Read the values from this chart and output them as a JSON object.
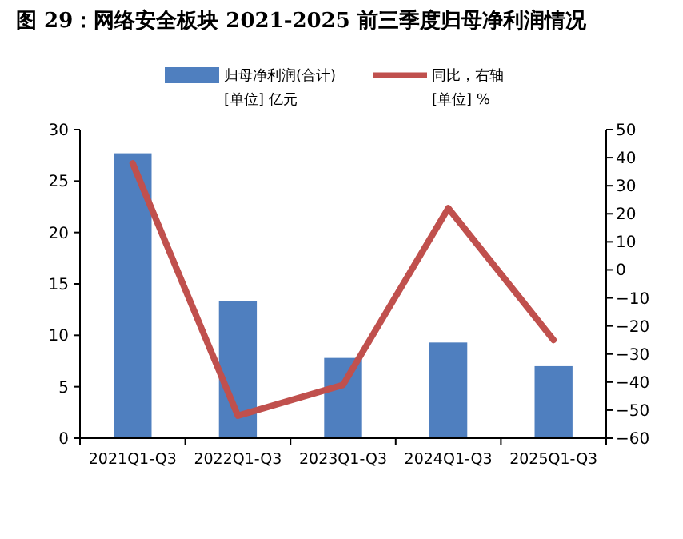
{
  "chart_data": {
    "type": "bar",
    "title": "图 29：网络安全板块 2021-2025 前三季度归母净利润情况",
    "ylabel": "[单位] 亿元",
    "y2label": "[单位] %",
    "categories": [
      "2021Q1-Q3",
      "2022Q1-Q3",
      "2023Q1-Q3",
      "2024Q1-Q3",
      "2025Q1-Q3"
    ],
    "series": [
      {
        "name": "归母净利润(合计)",
        "color": "#4f7fbf",
        "values": [
          27.7,
          13.3,
          7.8,
          9.3,
          7.0
        ]
      },
      {
        "name": "同比，右轴",
        "type": "line",
        "axis": "y2",
        "color": "#c0504d",
        "values": [
          38,
          -52,
          -41,
          22,
          -25
        ]
      }
    ],
    "ylim": [
      0,
      30
    ],
    "yticks": [
      0,
      5,
      10,
      15,
      20,
      25,
      30
    ],
    "y2lim": [
      -60,
      50
    ],
    "y2ticks": [
      -60,
      -50,
      -40,
      -30,
      -20,
      -10,
      0,
      10,
      20,
      30,
      40,
      50
    ],
    "legend": "top",
    "grid": false
  }
}
